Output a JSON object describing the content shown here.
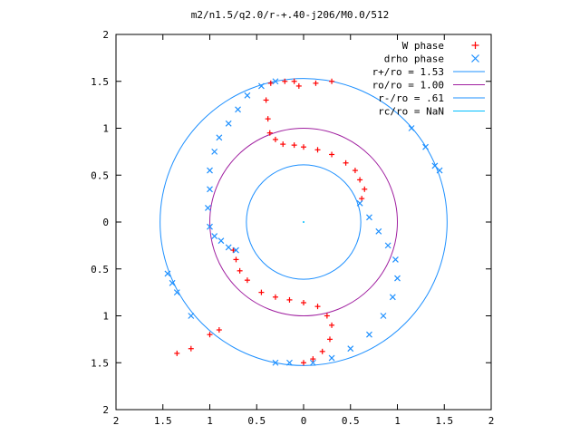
{
  "chart_data": {
    "type": "scatter",
    "title": "m2/n1.5/q2.0/r-+.40-j206/M0.0/512",
    "xlabel": "",
    "ylabel": "",
    "xlim": [
      -2,
      2
    ],
    "ylim": [
      -2,
      2
    ],
    "x_ticks": [
      -2,
      -1.5,
      -1,
      -0.5,
      0,
      0.5,
      1,
      1.5,
      2
    ],
    "y_ticks": [
      -2,
      -1.5,
      -1,
      -0.5,
      0,
      0.5,
      1,
      1.5,
      2
    ],
    "x_tick_labels": [
      "2",
      "1.5",
      "1",
      "0.5",
      "0",
      "0.5",
      "1",
      "1.5",
      "2"
    ],
    "y_tick_labels": [
      "2",
      "1.5",
      "1",
      "0.5",
      "0",
      "0.5",
      "1",
      "1.5",
      "2"
    ],
    "grid": false,
    "legend_position": "top-right",
    "legend": [
      {
        "label": "W phase",
        "marker": "plus",
        "color": "#ff0000"
      },
      {
        "label": "drho phase",
        "marker": "cross",
        "color": "#1e90ff"
      },
      {
        "label": "r+/ro = 1.53",
        "marker": "line",
        "color": "#1e90ff"
      },
      {
        "label": "ro/ro = 1.00",
        "marker": "line",
        "color": "#a020a0"
      },
      {
        "label": "r-/ro = .61",
        "marker": "line",
        "color": "#1e90ff"
      },
      {
        "label": "rc/ro = NaN",
        "marker": "line",
        "color": "#00bfff"
      }
    ],
    "circles": [
      {
        "name": "r+/ro = 1.53",
        "radius": 1.53,
        "color": "#1e90ff"
      },
      {
        "name": "ro/ro = 1.00",
        "radius": 1.0,
        "color": "#a020a0"
      },
      {
        "name": "r-/ro = .61",
        "radius": 0.61,
        "color": "#1e90ff"
      }
    ],
    "series": [
      {
        "name": "W phase",
        "color": "#ff0000",
        "marker": "plus",
        "points": [
          [
            -0.1,
            1.5
          ],
          [
            -0.2,
            1.5
          ],
          [
            -0.35,
            1.48
          ],
          [
            -0.4,
            1.3
          ],
          [
            -0.38,
            1.1
          ],
          [
            -0.36,
            0.95
          ],
          [
            -0.3,
            0.88
          ],
          [
            -0.22,
            0.83
          ],
          [
            -0.1,
            0.82
          ],
          [
            0.0,
            0.8
          ],
          [
            0.15,
            0.77
          ],
          [
            0.3,
            0.72
          ],
          [
            0.45,
            0.63
          ],
          [
            0.55,
            0.55
          ],
          [
            0.6,
            0.45
          ],
          [
            0.65,
            0.35
          ],
          [
            0.62,
            0.25
          ],
          [
            0.13,
            1.48
          ],
          [
            0.3,
            1.5
          ],
          [
            -0.05,
            1.45
          ],
          [
            -0.75,
            -0.3
          ],
          [
            -0.72,
            -0.4
          ],
          [
            -0.68,
            -0.52
          ],
          [
            -0.6,
            -0.62
          ],
          [
            -0.45,
            -0.75
          ],
          [
            -0.3,
            -0.8
          ],
          [
            -0.15,
            -0.83
          ],
          [
            0.0,
            -0.86
          ],
          [
            0.15,
            -0.9
          ],
          [
            0.25,
            -1.0
          ],
          [
            0.3,
            -1.1
          ],
          [
            0.28,
            -1.25
          ],
          [
            0.2,
            -1.38
          ],
          [
            0.1,
            -1.46
          ],
          [
            0.0,
            -1.5
          ],
          [
            -0.9,
            -1.15
          ],
          [
            -1.0,
            -1.2
          ],
          [
            -1.2,
            -1.35
          ],
          [
            -1.35,
            -1.4
          ]
        ]
      },
      {
        "name": "drho phase",
        "color": "#1e90ff",
        "marker": "cross",
        "points": [
          [
            -0.3,
            1.5
          ],
          [
            -0.45,
            1.45
          ],
          [
            -0.6,
            1.35
          ],
          [
            -0.7,
            1.2
          ],
          [
            -0.8,
            1.05
          ],
          [
            -0.9,
            0.9
          ],
          [
            -0.95,
            0.75
          ],
          [
            -1.0,
            0.55
          ],
          [
            -1.0,
            0.35
          ],
          [
            -1.02,
            0.15
          ],
          [
            -1.0,
            -0.05
          ],
          [
            -0.95,
            -0.15
          ],
          [
            -0.88,
            -0.2
          ],
          [
            -0.8,
            -0.27
          ],
          [
            -0.72,
            -0.3
          ],
          [
            0.6,
            0.2
          ],
          [
            0.7,
            0.05
          ],
          [
            0.8,
            -0.1
          ],
          [
            0.9,
            -0.25
          ],
          [
            0.98,
            -0.4
          ],
          [
            1.0,
            -0.6
          ],
          [
            0.95,
            -0.8
          ],
          [
            0.85,
            -1.0
          ],
          [
            0.7,
            -1.2
          ],
          [
            0.5,
            -1.35
          ],
          [
            0.3,
            -1.45
          ],
          [
            0.1,
            -1.5
          ],
          [
            1.15,
            1.0
          ],
          [
            1.3,
            0.8
          ],
          [
            1.4,
            0.6
          ],
          [
            1.45,
            0.55
          ],
          [
            -1.45,
            -0.55
          ],
          [
            -1.4,
            -0.65
          ],
          [
            -1.35,
            -0.75
          ],
          [
            -1.2,
            -1.0
          ],
          [
            -0.15,
            -1.5
          ],
          [
            -0.3,
            -1.5
          ]
        ]
      }
    ]
  }
}
